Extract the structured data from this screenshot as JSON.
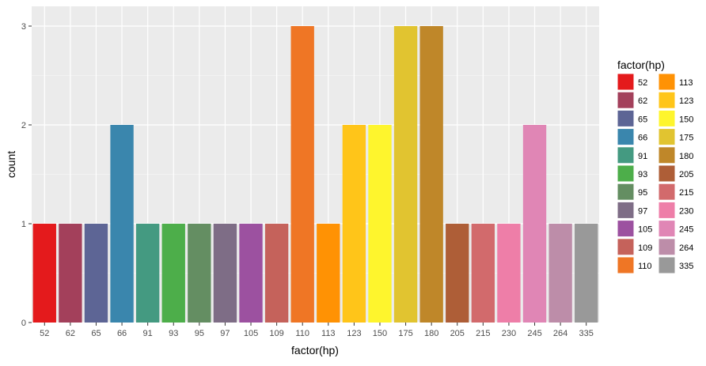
{
  "chart_data": {
    "type": "bar",
    "xlabel": "factor(hp)",
    "ylabel": "count",
    "ylim": [
      0,
      3.2
    ],
    "yticks": [
      0,
      1,
      2,
      3
    ],
    "grid": true,
    "legend_title": "factor(hp)",
    "legend_position": "right",
    "categories": [
      "52",
      "62",
      "65",
      "66",
      "91",
      "93",
      "95",
      "97",
      "105",
      "109",
      "110",
      "113",
      "123",
      "150",
      "175",
      "180",
      "205",
      "215",
      "230",
      "245",
      "264",
      "335"
    ],
    "values": [
      1,
      1,
      1,
      2,
      1,
      1,
      1,
      1,
      1,
      1,
      3,
      1,
      2,
      2,
      3,
      3,
      1,
      1,
      1,
      2,
      1,
      1
    ],
    "colors": [
      "#E41A1C",
      "#A3405B",
      "#5D6595",
      "#3A86AD",
      "#449A81",
      "#4DAE4A",
      "#648E62",
      "#7E6D86",
      "#9C51A0",
      "#C5625B",
      "#EF7625",
      "#FF9204",
      "#FFC519",
      "#FEF52D",
      "#E1C430",
      "#BF8729",
      "#AE5E37",
      "#D26A6C",
      "#EE7EA8",
      "#E086B5",
      "#BD8DA9",
      "#999999"
    ]
  }
}
